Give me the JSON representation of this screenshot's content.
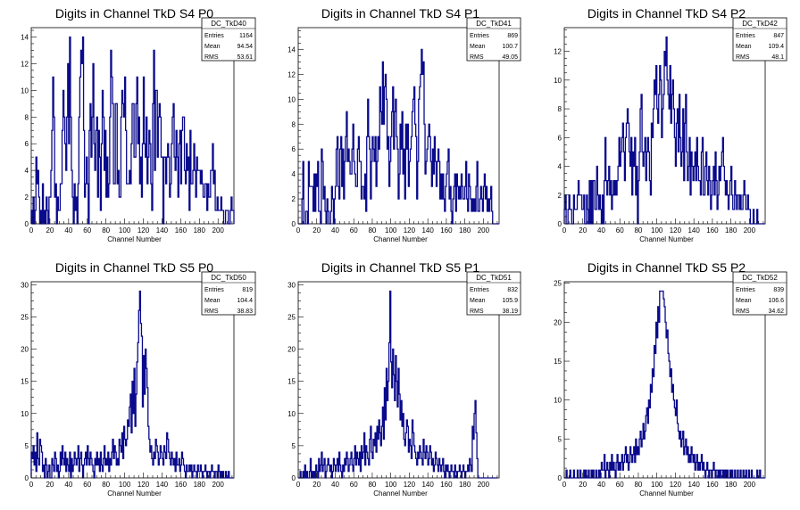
{
  "x_axis_title": "Channel Number",
  "stat_labels": {
    "entries": "Entries",
    "mean": "Mean",
    "rms": "RMS"
  },
  "colors": {
    "histogram": "#0a0a8c",
    "axis": "#000000",
    "background": "#ffffff"
  },
  "chart_data": [
    {
      "type": "bar",
      "title": "Digits in Channel TkD S4 P0",
      "histogram_name": "DC_TkD40",
      "xlabel": "Channel Number",
      "xlim": [
        0,
        217
      ],
      "ylim": [
        0,
        14.7
      ],
      "x_ticks": [
        0,
        20,
        40,
        60,
        80,
        100,
        120,
        140,
        160,
        180,
        200
      ],
      "y_ticks": [
        0,
        2,
        4,
        6,
        8,
        10,
        12,
        14
      ],
      "stats": {
        "entries": "1164",
        "mean": "94.54",
        "rms": "53.61"
      },
      "bins": "1,0,2,0,1,5,3,4,2,0,1,0,3,0,1,0,2,1,0,2,2,4,7,11,8,2,3,0,2,1,1,3,3,7,10,8,6,4,8,12,6,14,8,4,2,0,3,1,2,0,3,8,11,13,12,14,7,2,3,5,3,0,7,9,5,8,12,6,4,7,8,2,7,5,1,6,10,8,4,7,2,5,2,3,8,13,11,9,3,3,9,9,3,4,2,2,8,10,9,8,11,7,3,3,3,4,3,6,9,9,5,5,9,11,6,8,3,5,2,6,11,6,5,8,3,5,7,6,3,1,9,13,4,10,10,5,8,9,8,5,5,0,5,5,3,5,6,5,2,3,6,8,9,5,4,7,5,2,6,7,3,7,8,8,4,3,6,4,5,1,7,3,3,4,6,4,2,5,4,4,4,3,4,3,2,2,3,3,1,3,2,2,4,4,6,3,4,1,1,2,1,1,1,2,1,1,0,0,1,1,1,0,0,1,2,1,1"
    },
    {
      "type": "bar",
      "title": "Digits in Channel TkD S4 P1",
      "histogram_name": "DC_TkD41",
      "xlabel": "Channel Number",
      "xlim": [
        0,
        217
      ],
      "ylim": [
        0,
        15.75
      ],
      "x_ticks": [
        0,
        20,
        40,
        60,
        80,
        100,
        120,
        140,
        160,
        180,
        200
      ],
      "y_ticks": [
        0,
        2,
        4,
        6,
        8,
        10,
        12,
        14
      ],
      "stats": {
        "entries": "869",
        "mean": "100.7",
        "rms": "49.05"
      },
      "bins": "0,0,0,0,2,5,0,0,1,1,0,5,3,3,3,3,1,4,1,4,3,5,1,1,0,6,5,2,3,1,0,2,1,0,0,1,3,2,0,2,3,6,7,3,2,6,7,3,6,2,5,7,9,5,6,5,4,4,6,8,5,4,3,3,6,7,5,5,2,3,3,2,4,1,7,10,7,6,2,5,7,6,5,7,3,5,7,6,11,9,8,13,8,11,12,10,6,7,3,5,7,9,11,6,9,10,7,6,2,4,8,6,9,4,6,2,8,6,8,3,5,6,7,9,10,11,8,7,2,5,10,11,12,14,12,13,8,4,5,6,7,8,7,5,3,6,4,7,5,3,5,6,5,2,4,2,4,2,1,3,4,5,6,2,3,1,0,2,3,4,1,4,3,2,3,2,4,3,2,2,3,5,2,1,4,3,2,1,2,1,2,1,3,5,1,1,2,3,2,1,3,4,2,3,1,2,1,2,3,1,0,0,0,0,0,0,0"
    },
    {
      "type": "bar",
      "title": "Digits in Channel TkD S4 P2",
      "histogram_name": "DC_TkD42",
      "xlabel": "Channel Number",
      "xlim": [
        0,
        217
      ],
      "ylim": [
        0,
        13.65
      ],
      "x_ticks": [
        0,
        20,
        40,
        60,
        80,
        100,
        120,
        140,
        160,
        180,
        200
      ],
      "y_ticks": [
        0,
        2,
        4,
        6,
        8,
        10,
        12
      ],
      "stats": {
        "entries": "847",
        "mean": "109.4",
        "rms": "48.1"
      },
      "bins": "1,2,0,0,1,2,1,1,0,0,2,1,1,1,2,3,2,2,2,1,1,2,0,0,2,1,0,3,0,3,0,3,3,1,1,4,2,1,2,1,0,2,0,3,6,3,2,3,4,2,3,1,2,3,2,3,2,3,4,6,4,5,6,7,5,3,6,7,8,7,5,4,6,2,5,4,6,2,4,0,3,5,8,9,5,4,5,6,3,5,6,5,3,2,7,6,8,10,9,11,8,7,9,11,10,6,8,9,12,11,13,10,9,8,11,7,9,10,8,6,4,7,8,5,9,6,4,5,8,3,7,9,5,3,4,6,2,5,4,3,4,5,3,6,4,3,3,2,5,6,2,2,4,5,3,2,4,3,1,2,3,4,2,5,3,1,2,4,3,4,5,6,4,3,2,3,2,1,2,3,4,2,1,1,3,2,1,2,2,1,2,1,1,2,3,2,1,1,2,1,1,0,0,0,1,0,0,0,1,0,0,0,0,0,0,0,0"
    },
    {
      "type": "bar",
      "title": "Digits in Channel TkD S5 P0",
      "histogram_name": "DC_TkD50",
      "xlabel": "Channel Number",
      "xlim": [
        0,
        217
      ],
      "ylim": [
        0,
        30.45
      ],
      "x_ticks": [
        0,
        20,
        40,
        60,
        80,
        100,
        120,
        140,
        160,
        180,
        200
      ],
      "y_ticks": [
        0,
        5,
        10,
        15,
        20,
        25,
        30
      ],
      "stats": {
        "entries": "819",
        "mean": "104.4",
        "rms": "38.83"
      },
      "bins": "4,3,5,2,4,1,7,3,2,6,5,4,1,2,0,3,2,0,1,2,0,0,3,2,1,4,3,1,2,0,1,4,2,5,3,2,4,1,3,2,1,4,0,3,1,2,4,3,2,3,5,1,3,4,2,0,2,3,4,2,5,3,2,4,3,2,1,0,3,2,4,2,3,1,4,2,1,3,5,2,3,2,4,1,3,2,4,6,3,5,4,2,3,2,6,5,4,7,3,8,6,5,6,9,8,11,13,7,15,10,17,8,13,18,21,26,29,24,22,11,19,13,20,17,14,8,6,4,5,3,2,4,3,6,5,4,2,3,5,4,3,2,5,4,3,7,6,4,3,2,4,3,2,3,1,4,2,2,3,1,2,4,3,2,1,0,2,1,1,2,1,2,0,1,2,1,1,0,2,1,1,2,1,0,1,1,2,1,0,1,1,0,1,2,1,1,0,1,1,0,2,1,0,1,0,1,0,0,1,0,0,1,0,0,0,0,0"
    },
    {
      "type": "bar",
      "title": "Digits in Channel TkD S5 P1",
      "histogram_name": "DC_TkD51",
      "xlabel": "Channel Number",
      "xlim": [
        0,
        217
      ],
      "ylim": [
        0,
        30.45
      ],
      "x_ticks": [
        0,
        20,
        40,
        60,
        80,
        100,
        120,
        140,
        160,
        180,
        200
      ],
      "y_ticks": [
        0,
        5,
        10,
        15,
        20,
        25,
        30
      ],
      "stats": {
        "entries": "832",
        "mean": "105.9",
        "rms": "38.19"
      },
      "bins": "0,0,1,0,0,1,0,2,0,1,0,0,1,3,0,1,0,1,0,2,1,0,3,1,2,4,1,2,3,0,1,2,3,2,1,2,0,1,3,2,1,2,3,1,4,2,1,0,2,1,3,2,4,3,1,2,3,4,2,1,3,5,2,4,3,2,4,1,5,3,4,7,2,5,4,3,2,6,8,4,3,6,5,7,4,8,6,9,7,5,8,11,6,14,9,17,12,15,21,29,18,14,20,16,12,19,15,11,17,13,9,12,8,10,6,5,7,9,8,4,6,5,3,9,7,5,4,3,2,4,3,5,4,3,2,6,4,3,5,4,2,3,5,4,2,3,1,2,4,3,2,1,3,2,1,2,3,1,0,2,1,2,1,0,1,2,1,1,0,2,1,0,1,1,2,1,0,1,2,1,0,1,1,2,1,3,2,1,8,6,10,12,7,3,0,0,0,0,0,0,0,0,0,0,0,0,0,0,0,0,0,0,0,0,0"
    },
    {
      "type": "bar",
      "title": "Digits in Channel TkD S5 P2",
      "histogram_name": "DC_TkD52",
      "xlabel": "Channel Number",
      "xlim": [
        0,
        217
      ],
      "ylim": [
        0,
        25.2
      ],
      "x_ticks": [
        0,
        20,
        40,
        60,
        80,
        100,
        120,
        140,
        160,
        180,
        200
      ],
      "y_ticks": [
        0,
        5,
        10,
        15,
        20,
        25
      ],
      "stats": {
        "entries": "839",
        "mean": "106.6",
        "rms": "34.62"
      },
      "bins": "0,0,1,0,0,0,1,0,0,0,1,0,0,0,1,0,0,1,0,0,0,1,0,1,0,0,1,0,0,1,0,1,0,0,1,0,0,1,0,1,2,1,1,3,0,1,2,1,0,2,1,3,1,2,1,0,2,3,1,2,1,2,3,1,2,3,4,2,3,1,2,4,3,2,3,4,2,5,3,4,3,5,6,4,5,7,5,6,8,9,7,10,9,12,11,14,13,17,16,20,18,22,20,24,24,24,24,23,22,20,18,19,16,15,13,14,11,12,10,9,8,10,7,6,5,6,4,5,6,3,4,5,3,4,2,3,2,4,3,2,3,1,2,3,1,2,1,2,3,1,2,1,0,1,2,1,0,1,1,0,1,2,1,0,1,1,0,1,0,1,1,0,1,0,1,0,1,0,0,1,0,1,0,0,1,0,0,1,0,0,1,0,0,1,0,0,1,0,0,1,0,0,1,0,0,0,0,0,1,0,0,1,0,0,0,0,0"
    }
  ]
}
